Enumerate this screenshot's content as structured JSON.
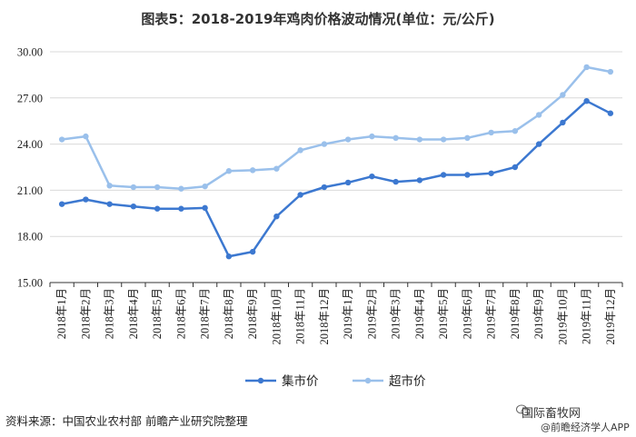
{
  "title": "图表5：2018-2019年鸡肉价格波动情况(单位：元/公斤)",
  "source": "资料来源：中国农业农村部 前瞻产业研究院整理",
  "watermark": {
    "line1": "国际畜牧网",
    "line2": "@前瞻经济学人APP"
  },
  "colors": {
    "series1": "#3c78d0",
    "series2": "#9ac0eb",
    "grid": "#d9d9d9",
    "axis": "#222222"
  },
  "chart_data": {
    "type": "line",
    "title": "图表5：2018-2019年鸡肉价格波动情况(单位：元/公斤)",
    "xlabel": "",
    "ylabel": "",
    "ylim": [
      15,
      30
    ],
    "yticks": [
      "15.00",
      "18.00",
      "21.00",
      "24.00",
      "27.00",
      "30.00"
    ],
    "grid": true,
    "legend_position": "bottom",
    "categories": [
      "2018年1月",
      "2018年2月",
      "2018年3月",
      "2018年4月",
      "2018年5月",
      "2018年6月",
      "2018年7月",
      "2018年8月",
      "2018年9月",
      "2018年10月",
      "2018年11月",
      "2018年12月",
      "2019年1月",
      "2019年2月",
      "2019年3月",
      "2019年4月",
      "2019年5月",
      "2019年6月",
      "2019年7月",
      "2019年8月",
      "2019年9月",
      "2019年10月",
      "2019年11月",
      "2019年12月"
    ],
    "series": [
      {
        "name": "集市价",
        "values": [
          20.1,
          20.4,
          20.1,
          19.95,
          19.8,
          19.8,
          19.85,
          16.7,
          17.0,
          19.3,
          20.7,
          21.2,
          21.5,
          21.9,
          21.55,
          21.65,
          22.0,
          22.0,
          22.1,
          22.5,
          24.0,
          25.4,
          26.8,
          26.0
        ]
      },
      {
        "name": "超市价",
        "values": [
          24.3,
          24.5,
          21.3,
          21.2,
          21.2,
          21.1,
          21.25,
          22.25,
          22.3,
          22.4,
          23.6,
          24.0,
          24.3,
          24.5,
          24.4,
          24.3,
          24.3,
          24.4,
          24.75,
          24.85,
          25.9,
          27.2,
          29.0,
          28.7
        ]
      }
    ]
  }
}
